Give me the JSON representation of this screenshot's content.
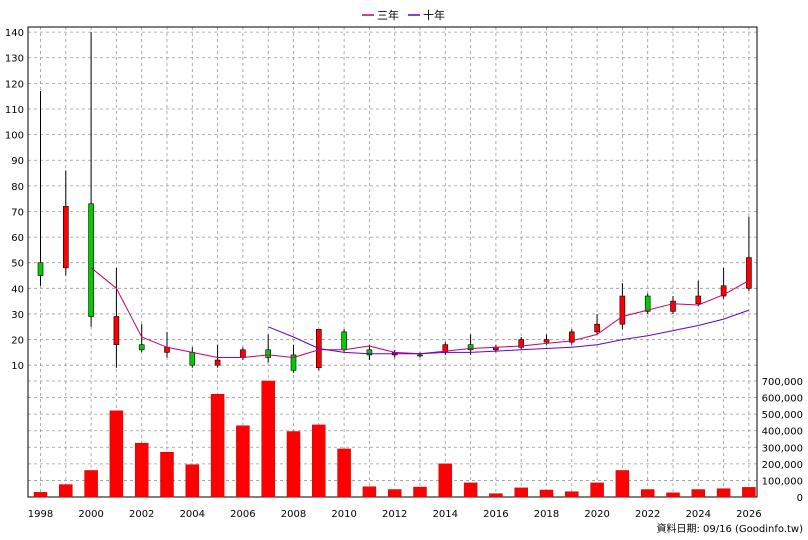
{
  "chart_data": {
    "type": "candlestick+line+bar",
    "legend": [
      "三年",
      "十年"
    ],
    "legend_placement": "top-center",
    "grid": true,
    "footer": "資料日期: 09/16  (Goodinfo.tw)",
    "price_axis": {
      "ticks": [
        10,
        20,
        30,
        40,
        50,
        60,
        70,
        80,
        90,
        100,
        110,
        120,
        130,
        140
      ],
      "ylim": [
        5,
        142
      ],
      "position": "left"
    },
    "volume_axis": {
      "ticks": [
        0,
        100000,
        200000,
        300000,
        400000,
        500000,
        600000,
        700000
      ],
      "tick_labels": [
        "0",
        "100,000",
        "200,000",
        "300,000",
        "400,000",
        "500,000",
        "600,000",
        "700,000"
      ],
      "ylim": [
        0,
        700000
      ],
      "position": "right"
    },
    "x_ticks": [
      "1998",
      "2000",
      "2002",
      "2004",
      "2006",
      "2008",
      "2010",
      "2012",
      "2014",
      "2016",
      "2018",
      "2020",
      "2022",
      "2024",
      "2026"
    ],
    "years": [
      1998,
      1999,
      2000,
      2001,
      2002,
      2003,
      2004,
      2005,
      2006,
      2007,
      2008,
      2009,
      2010,
      2011,
      2012,
      2013,
      2014,
      2015,
      2016,
      2017,
      2018,
      2019,
      2020,
      2021,
      2022,
      2023,
      2024,
      2025,
      2026
    ],
    "candles": [
      {
        "year": 1998,
        "open": 45,
        "close": 50,
        "high": 117,
        "low": 41
      },
      {
        "year": 1999,
        "open": 72,
        "close": 48,
        "high": 86,
        "low": 45
      },
      {
        "year": 2000,
        "open": 29,
        "close": 73,
        "high": 140,
        "low": 25
      },
      {
        "year": 2001,
        "open": 29,
        "close": 18,
        "high": 48,
        "low": 9
      },
      {
        "year": 2002,
        "open": 16,
        "close": 18,
        "high": 26,
        "low": 15
      },
      {
        "year": 2003,
        "open": 17,
        "close": 15,
        "high": 23,
        "low": 13
      },
      {
        "year": 2004,
        "open": 10,
        "close": 15,
        "high": 17,
        "low": 9
      },
      {
        "year": 2005,
        "open": 12,
        "close": 10,
        "high": 18,
        "low": 9
      },
      {
        "year": 2006,
        "open": 16,
        "close": 13,
        "high": 17,
        "low": 12
      },
      {
        "year": 2007,
        "open": 13,
        "close": 16,
        "high": 22,
        "low": 11
      },
      {
        "year": 2008,
        "open": 8,
        "close": 14,
        "high": 18,
        "low": 7
      },
      {
        "year": 2009,
        "open": 24,
        "close": 9,
        "high": 24,
        "low": 8
      },
      {
        "year": 2010,
        "open": 16,
        "close": 23,
        "high": 24,
        "low": 15
      },
      {
        "year": 2011,
        "open": 14,
        "close": 16,
        "high": 18,
        "low": 12
      },
      {
        "year": 2012,
        "open": 15,
        "close": 14,
        "high": 16,
        "low": 13
      },
      {
        "year": 2013,
        "open": 14,
        "close": 14,
        "high": 15,
        "low": 13
      },
      {
        "year": 2014,
        "open": 18,
        "close": 15,
        "high": 19,
        "low": 14
      },
      {
        "year": 2015,
        "open": 16,
        "close": 18,
        "high": 22,
        "low": 14
      },
      {
        "year": 2016,
        "open": 17,
        "close": 16,
        "high": 18,
        "low": 15
      },
      {
        "year": 2017,
        "open": 20,
        "close": 17,
        "high": 21,
        "low": 16
      },
      {
        "year": 2018,
        "open": 20,
        "close": 19,
        "high": 22,
        "low": 18
      },
      {
        "year": 2019,
        "open": 23,
        "close": 19,
        "high": 24,
        "low": 18
      },
      {
        "year": 2020,
        "open": 26,
        "close": 23,
        "high": 30,
        "low": 22
      },
      {
        "year": 2021,
        "open": 37,
        "close": 26,
        "high": 42,
        "low": 24
      },
      {
        "year": 2022,
        "open": 31,
        "close": 37,
        "high": 38,
        "low": 30
      },
      {
        "year": 2023,
        "open": 35,
        "close": 31,
        "high": 37,
        "low": 30
      },
      {
        "year": 2024,
        "open": 37,
        "close": 34,
        "high": 43,
        "low": 33
      },
      {
        "year": 2025,
        "open": 41,
        "close": 37,
        "high": 48,
        "low": 36
      },
      {
        "year": 2026,
        "open": 52,
        "close": 40,
        "high": 68,
        "low": 39
      }
    ],
    "series": [
      {
        "name": "三年",
        "color": "#cc0066",
        "points": [
          [
            2000,
            48
          ],
          [
            2001,
            40
          ],
          [
            2002,
            21
          ],
          [
            2003,
            17
          ],
          [
            2004,
            15
          ],
          [
            2005,
            13
          ],
          [
            2006,
            13
          ],
          [
            2007,
            14
          ],
          [
            2008,
            13
          ],
          [
            2009,
            16
          ],
          [
            2010,
            16
          ],
          [
            2011,
            17.5
          ],
          [
            2012,
            15
          ],
          [
            2013,
            14.5
          ],
          [
            2014,
            15.5
          ],
          [
            2015,
            16.5
          ],
          [
            2016,
            17
          ],
          [
            2017,
            17.5
          ],
          [
            2018,
            18.5
          ],
          [
            2019,
            19.5
          ],
          [
            2020,
            22
          ],
          [
            2021,
            29
          ],
          [
            2022,
            31.5
          ],
          [
            2023,
            34
          ],
          [
            2024,
            33.5
          ],
          [
            2025,
            37.5
          ],
          [
            2026,
            43
          ]
        ]
      },
      {
        "name": "十年",
        "color": "#6600cc",
        "points": [
          [
            2007,
            25
          ],
          [
            2008,
            21
          ],
          [
            2009,
            16.5
          ],
          [
            2010,
            15
          ],
          [
            2011,
            14.5
          ],
          [
            2012,
            14.5
          ],
          [
            2013,
            14.5
          ],
          [
            2014,
            15
          ],
          [
            2015,
            15
          ],
          [
            2016,
            15.5
          ],
          [
            2017,
            16
          ],
          [
            2018,
            16.5
          ],
          [
            2019,
            17
          ],
          [
            2020,
            18
          ],
          [
            2021,
            20
          ],
          [
            2022,
            21.5
          ],
          [
            2023,
            23.5
          ],
          [
            2024,
            25.5
          ],
          [
            2025,
            28
          ],
          [
            2026,
            31.5
          ]
        ]
      }
    ],
    "volume": [
      {
        "year": 1998,
        "value": 28000
      },
      {
        "year": 1999,
        "value": 75000
      },
      {
        "year": 2000,
        "value": 160000
      },
      {
        "year": 2001,
        "value": 520000
      },
      {
        "year": 2002,
        "value": 325000
      },
      {
        "year": 2003,
        "value": 270000
      },
      {
        "year": 2004,
        "value": 195000
      },
      {
        "year": 2005,
        "value": 620000
      },
      {
        "year": 2006,
        "value": 430000
      },
      {
        "year": 2007,
        "value": 700000
      },
      {
        "year": 2008,
        "value": 395000
      },
      {
        "year": 2009,
        "value": 435000
      },
      {
        "year": 2010,
        "value": 290000
      },
      {
        "year": 2011,
        "value": 62000
      },
      {
        "year": 2012,
        "value": 45000
      },
      {
        "year": 2013,
        "value": 60000
      },
      {
        "year": 2014,
        "value": 200000
      },
      {
        "year": 2015,
        "value": 85000
      },
      {
        "year": 2016,
        "value": 20000
      },
      {
        "year": 2017,
        "value": 55000
      },
      {
        "year": 2018,
        "value": 42000
      },
      {
        "year": 2019,
        "value": 32000
      },
      {
        "year": 2020,
        "value": 85000
      },
      {
        "year": 2021,
        "value": 160000
      },
      {
        "year": 2022,
        "value": 45000
      },
      {
        "year": 2023,
        "value": 25000
      },
      {
        "year": 2024,
        "value": 45000
      },
      {
        "year": 2025,
        "value": 50000
      },
      {
        "year": 2026,
        "value": 58000
      }
    ],
    "colors": {
      "up": "#ff0000",
      "down": "#00cc00",
      "volume": "#ff0000",
      "grid": "#999999",
      "frame": "#000000"
    }
  }
}
